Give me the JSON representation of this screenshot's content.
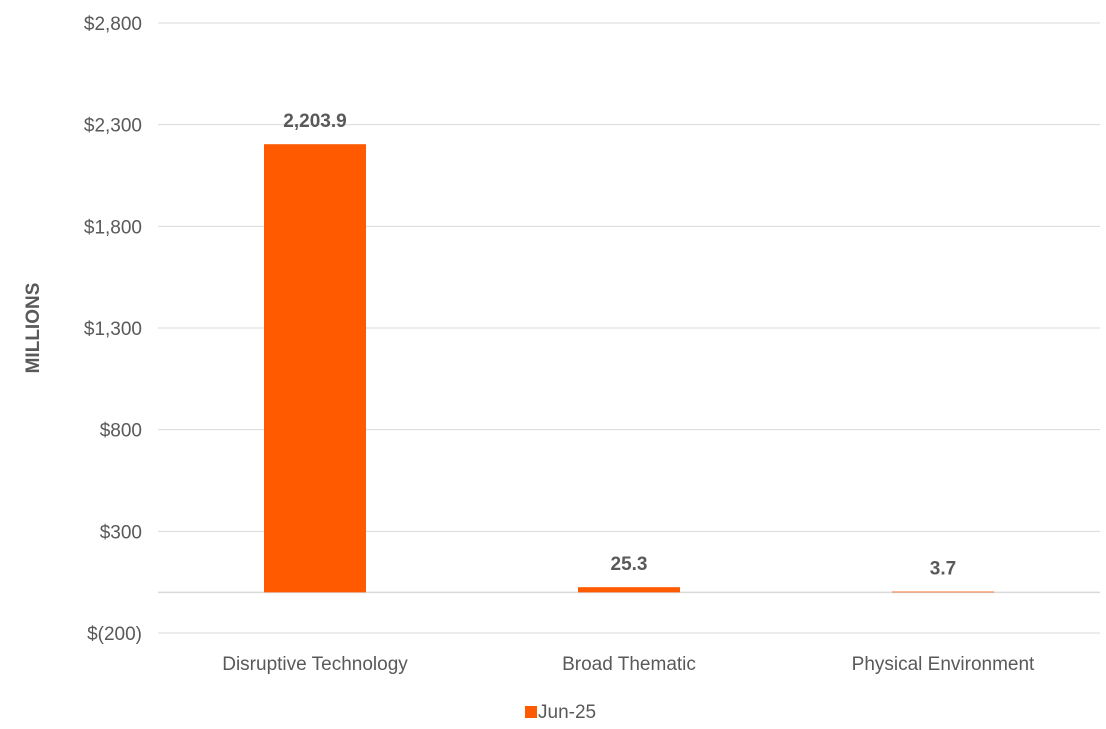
{
  "chart_data": {
    "type": "bar",
    "title": "",
    "xlabel": "",
    "ylabel": "MILLIONS",
    "categories": [
      "Disruptive Technology",
      "Broad Thematic",
      "Physical Environment"
    ],
    "series": [
      {
        "name": "Jun-25",
        "values": [
          2203.9,
          25.3,
          3.7
        ],
        "data_labels": [
          "2,203.9",
          "25.3",
          "3.7"
        ],
        "color": "#FF5A00"
      }
    ],
    "ylim": [
      -200,
      2800
    ],
    "yticks": [
      -200,
      300,
      800,
      1300,
      1800,
      2300,
      2800
    ],
    "ytick_labels": [
      "$(200)",
      "$300",
      "$800",
      "$1,300",
      "$1,800",
      "$2,300",
      "$2,800"
    ],
    "grid": true,
    "legend_position": "bottom",
    "colors": {
      "bar": "#FF5A00",
      "grid": "#D9D9D9",
      "text": "#595959"
    }
  }
}
